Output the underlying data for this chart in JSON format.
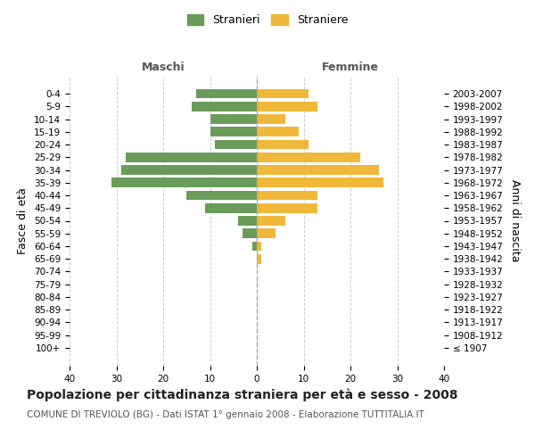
{
  "age_groups": [
    "100+",
    "95-99",
    "90-94",
    "85-89",
    "80-84",
    "75-79",
    "70-74",
    "65-69",
    "60-64",
    "55-59",
    "50-54",
    "45-49",
    "40-44",
    "35-39",
    "30-34",
    "25-29",
    "20-24",
    "15-19",
    "10-14",
    "5-9",
    "0-4"
  ],
  "birth_years": [
    "≤ 1907",
    "1908-1912",
    "1913-1917",
    "1918-1922",
    "1923-1927",
    "1928-1932",
    "1933-1937",
    "1938-1942",
    "1943-1947",
    "1948-1952",
    "1953-1957",
    "1958-1962",
    "1963-1967",
    "1968-1972",
    "1973-1977",
    "1978-1982",
    "1983-1987",
    "1988-1992",
    "1993-1997",
    "1998-2002",
    "2003-2007"
  ],
  "maschi": [
    0,
    0,
    0,
    0,
    0,
    0,
    0,
    0,
    1,
    3,
    4,
    11,
    15,
    31,
    29,
    28,
    9,
    10,
    10,
    14,
    13
  ],
  "femmine": [
    0,
    0,
    0,
    0,
    0,
    0,
    0,
    1,
    1,
    4,
    6,
    13,
    13,
    27,
    26,
    22,
    11,
    9,
    6,
    13,
    11
  ],
  "maschi_color": "#6a9b5a",
  "femmine_color": "#f0b83a",
  "bar_height": 0.75,
  "xlim": [
    -40,
    40
  ],
  "xticks": [
    -40,
    -30,
    -20,
    -10,
    0,
    10,
    20,
    30,
    40
  ],
  "xticklabels": [
    "40",
    "30",
    "20",
    "10",
    "0",
    "10",
    "20",
    "30",
    "40"
  ],
  "title": "Popolazione per cittadinanza straniera per età e sesso - 2008",
  "subtitle": "COMUNE DI TREVIOLO (BG) - Dati ISTAT 1° gennaio 2008 - Elaborazione TUTTITALIA.IT",
  "ylabel_left": "Fasce di età",
  "ylabel_right": "Anni di nascita",
  "legend_maschi": "Stranieri",
  "legend_femmine": "Straniere",
  "header_maschi": "Maschi",
  "header_femmine": "Femmine",
  "grid_color": "#cccccc",
  "background_color": "#ffffff",
  "title_fontsize": 10,
  "subtitle_fontsize": 7.5,
  "label_fontsize": 9,
  "tick_fontsize": 7.5,
  "header_fontsize": 9
}
